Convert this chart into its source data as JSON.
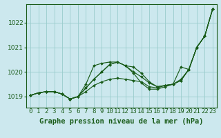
{
  "title": "Graphe pression niveau de la mer (hPa)",
  "bg_color": "#cce8ee",
  "grid_color": "#99cccc",
  "line_color": "#1a5c1a",
  "marker_color": "#1a5c1a",
  "tick_fontsize": 6.5,
  "title_fontsize": 7.5,
  "xlim": [
    -0.5,
    23.5
  ],
  "ylim": [
    1018.55,
    1022.75
  ],
  "yticks": [
    1019,
    1020,
    1021,
    1022
  ],
  "xtick_labels": [
    "0",
    "1",
    "2",
    "3",
    "4",
    "5",
    "6",
    "7",
    "8",
    "9",
    "10",
    "11",
    "12",
    "13",
    "14",
    "15",
    "16",
    "17",
    "18",
    "19",
    "20",
    "21",
    "22",
    "23"
  ],
  "line1": [
    1019.05,
    1019.15,
    1019.2,
    1019.2,
    1019.1,
    1018.9,
    1019.0,
    1019.2,
    1019.45,
    1019.6,
    1019.7,
    1019.75,
    1019.7,
    1019.65,
    1019.6,
    1019.4,
    1019.35,
    1019.45,
    1019.5,
    1019.65,
    1020.1,
    1021.0,
    1021.45,
    1022.55
  ],
  "line2": [
    1019.05,
    1019.15,
    1019.2,
    1019.2,
    1019.1,
    1018.9,
    1019.0,
    1019.35,
    1019.7,
    1020.0,
    1020.3,
    1020.4,
    1020.25,
    1020.0,
    1019.8,
    1019.55,
    1019.4,
    1019.45,
    1019.5,
    1019.7,
    1020.1,
    1021.0,
    1021.45,
    1022.55
  ],
  "line3": [
    1019.05,
    1019.15,
    1019.2,
    1019.2,
    1019.1,
    1018.9,
    1019.0,
    1019.5,
    1020.25,
    1020.35,
    1020.4,
    1020.4,
    1020.25,
    1020.2,
    1019.95,
    1019.6,
    1019.4,
    1019.45,
    1019.5,
    1020.2,
    1020.1,
    1021.0,
    1021.45,
    1022.55
  ],
  "line4": [
    1019.05,
    1019.15,
    1019.2,
    1019.2,
    1019.1,
    1018.9,
    1019.0,
    1019.35,
    1019.7,
    1020.0,
    1020.3,
    1020.4,
    1020.25,
    1019.95,
    1019.55,
    1019.3,
    1019.3,
    1019.4,
    1019.5,
    1019.65,
    1020.1,
    1021.0,
    1021.45,
    1022.55
  ]
}
